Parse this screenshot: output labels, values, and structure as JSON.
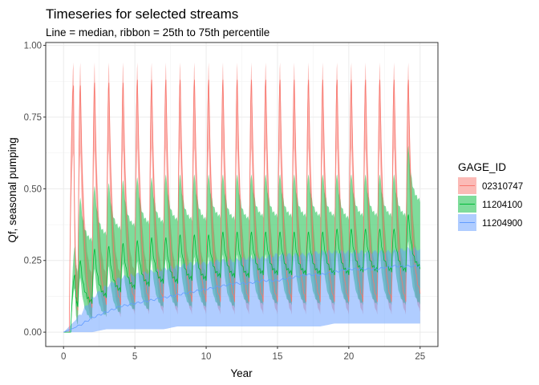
{
  "chart_data": {
    "type": "line",
    "title": "Timeseries for selected streams",
    "subtitle": "Line = median, ribbon = 25th to 75th percentile",
    "xlabel": "Year",
    "ylabel": "Qf, seasonal pumping",
    "xlim": [
      -1.25,
      26.25
    ],
    "ylim": [
      -0.05,
      1.01
    ],
    "x_ticks": [
      0,
      5,
      10,
      15,
      20,
      25
    ],
    "x_tick_labels": [
      "0",
      "5",
      "10",
      "15",
      "20",
      "25"
    ],
    "y_ticks": [
      0.0,
      0.25,
      0.5,
      0.75,
      1.0
    ],
    "y_tick_labels": [
      "0.00",
      "0.25",
      "0.50",
      "0.75",
      "1.00"
    ],
    "grid": true,
    "legend": {
      "title": "GAGE_ID",
      "position": "right"
    },
    "series": [
      {
        "name": "02310747",
        "color": "#F8766D",
        "pattern": "seasonal",
        "cycles": 25,
        "start_x": 0.4,
        "median_peak": [
          0.86,
          0.86,
          0.87,
          0.87,
          0.87,
          0.88,
          0.88,
          0.88,
          0.88,
          0.88,
          0.88,
          0.88,
          0.88,
          0.88,
          0.88,
          0.88,
          0.88,
          0.88,
          0.88,
          0.88,
          0.88,
          0.88,
          0.88,
          0.88,
          0.88
        ],
        "median_trough": [
          0.05,
          0.06,
          0.07,
          0.07,
          0.08,
          0.08,
          0.08,
          0.08,
          0.08,
          0.08,
          0.08,
          0.08,
          0.08,
          0.08,
          0.08,
          0.08,
          0.08,
          0.08,
          0.08,
          0.08,
          0.08,
          0.08,
          0.08,
          0.08,
          0.11
        ],
        "ribbon_peak_upper": [
          0.94,
          0.94,
          0.94,
          0.94,
          0.94,
          0.94,
          0.94,
          0.94,
          0.94,
          0.94,
          0.94,
          0.94,
          0.94,
          0.94,
          0.94,
          0.94,
          0.94,
          0.94,
          0.94,
          0.94,
          0.94,
          0.94,
          0.94,
          0.94,
          0.94
        ],
        "ribbon_trough_lower": [
          0.0,
          0.02,
          0.03,
          0.03,
          0.04,
          0.04,
          0.04,
          0.04,
          0.04,
          0.04,
          0.04,
          0.04,
          0.04,
          0.04,
          0.04,
          0.04,
          0.04,
          0.04,
          0.04,
          0.04,
          0.04,
          0.04,
          0.04,
          0.04,
          0.05
        ]
      },
      {
        "name": "11204100",
        "color": "#00BA38",
        "pattern": "seasonal",
        "cycles": 25,
        "start_x": 0.5,
        "median_peak": [
          0.2,
          0.25,
          0.29,
          0.3,
          0.31,
          0.32,
          0.33,
          0.33,
          0.34,
          0.34,
          0.34,
          0.35,
          0.35,
          0.35,
          0.35,
          0.35,
          0.35,
          0.35,
          0.35,
          0.36,
          0.36,
          0.36,
          0.36,
          0.36,
          0.41
        ],
        "median_trough": [
          0.09,
          0.1,
          0.12,
          0.14,
          0.15,
          0.16,
          0.17,
          0.17,
          0.18,
          0.18,
          0.19,
          0.19,
          0.19,
          0.2,
          0.2,
          0.2,
          0.2,
          0.2,
          0.2,
          0.2,
          0.21,
          0.21,
          0.21,
          0.21,
          0.22
        ],
        "ribbon_peak_upper": [
          0.3,
          0.47,
          0.51,
          0.52,
          0.53,
          0.54,
          0.54,
          0.55,
          0.55,
          0.55,
          0.55,
          0.55,
          0.55,
          0.55,
          0.55,
          0.55,
          0.55,
          0.55,
          0.55,
          0.55,
          0.55,
          0.55,
          0.55,
          0.55,
          0.65
        ],
        "ribbon_trough_lower": [
          0.02,
          0.04,
          0.05,
          0.06,
          0.07,
          0.07,
          0.08,
          0.08,
          0.08,
          0.08,
          0.08,
          0.08,
          0.09,
          0.09,
          0.09,
          0.09,
          0.09,
          0.09,
          0.09,
          0.09,
          0.09,
          0.09,
          0.09,
          0.09,
          0.09
        ]
      },
      {
        "name": "11204900",
        "color": "#619CFF",
        "pattern": "trend",
        "x": [
          0,
          1,
          2,
          3,
          4,
          5,
          6,
          7,
          8,
          9,
          10,
          11,
          12,
          13,
          14,
          15,
          16,
          17,
          18,
          19,
          20,
          21,
          22,
          23,
          24,
          25
        ],
        "median": [
          0.0,
          0.02,
          0.05,
          0.07,
          0.09,
          0.1,
          0.11,
          0.12,
          0.13,
          0.14,
          0.15,
          0.16,
          0.17,
          0.17,
          0.18,
          0.18,
          0.19,
          0.2,
          0.2,
          0.21,
          0.22,
          0.22,
          0.22,
          0.23,
          0.23,
          0.23
        ],
        "ribbon_lower": [
          0.0,
          0.0,
          0.0,
          0.01,
          0.01,
          0.01,
          0.01,
          0.01,
          0.02,
          0.02,
          0.02,
          0.02,
          0.02,
          0.02,
          0.02,
          0.02,
          0.02,
          0.02,
          0.02,
          0.03,
          0.03,
          0.03,
          0.03,
          0.03,
          0.03,
          0.03
        ],
        "ribbon_upper": [
          0.0,
          0.05,
          0.12,
          0.16,
          0.19,
          0.2,
          0.21,
          0.22,
          0.23,
          0.24,
          0.24,
          0.25,
          0.25,
          0.26,
          0.26,
          0.27,
          0.27,
          0.27,
          0.28,
          0.28,
          0.28,
          0.28,
          0.28,
          0.28,
          0.29,
          0.29
        ]
      }
    ]
  }
}
